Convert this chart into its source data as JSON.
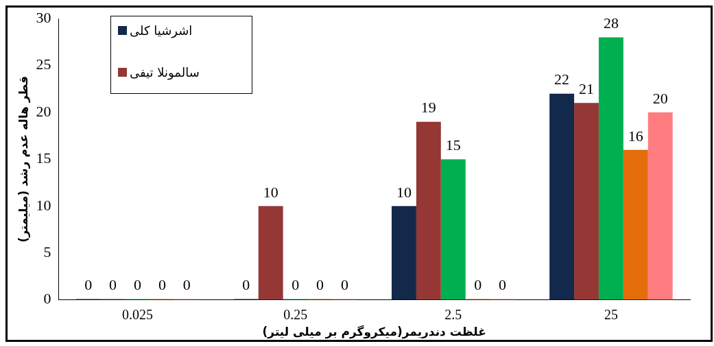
{
  "chart_data": {
    "type": "bar",
    "xlabel": "غلظت دندریمر(میکروگرم بر میلی لیتر)",
    "ylabel": "قطر هاله عدم رشد (میلیمتر)",
    "categories": [
      "0.025",
      "0.25",
      "2.5",
      "25"
    ],
    "series": [
      {
        "name": "اشرشیا کلی",
        "color": "#13294b",
        "values": [
          0,
          0,
          10,
          22
        ]
      },
      {
        "name": "سالمونلا تیفی",
        "color": "#953735",
        "values": [
          0,
          10,
          19,
          21
        ]
      },
      {
        "color": "#00b050",
        "values": [
          0,
          0,
          15,
          28
        ]
      },
      {
        "color": "#e46c0a",
        "values": [
          0,
          0,
          0,
          16
        ]
      },
      {
        "color": "#ff7c80",
        "values": [
          0,
          0,
          0,
          20
        ]
      }
    ],
    "ylim": [
      0,
      30
    ],
    "yticks": [
      0,
      5,
      10,
      15,
      20,
      25,
      30
    ],
    "data_labels": true,
    "legend": "top left",
    "grid": false
  }
}
